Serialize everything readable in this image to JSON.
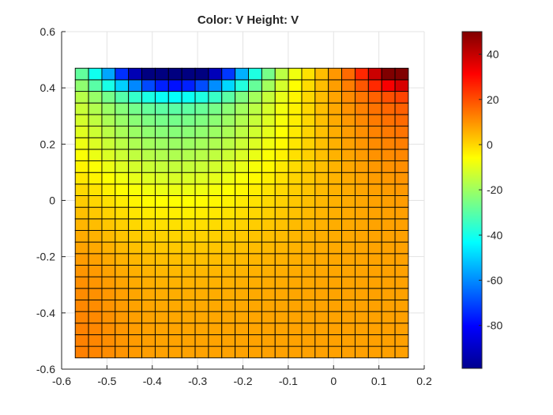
{
  "chart_data": {
    "type": "heatmap",
    "title": "Color: V  Height: V",
    "xlabel": "",
    "ylabel": "",
    "xlim": [
      -0.6,
      0.2
    ],
    "ylim": [
      -0.6,
      0.6
    ],
    "xticks": [
      -0.6,
      -0.5,
      -0.4,
      -0.3,
      -0.2,
      -0.1,
      0,
      0.1,
      0.2
    ],
    "xtick_labels": [
      "-0.6",
      "-0.5",
      "-0.4",
      "-0.3",
      "-0.2",
      "-0.1",
      "0",
      "0.1",
      "0.2"
    ],
    "yticks": [
      0.6,
      0.4,
      0.2,
      0,
      -0.2,
      -0.4,
      -0.6
    ],
    "ytick_labels": [
      "0.6",
      "0.4",
      "0.2",
      "0",
      "-0.2",
      "-0.4",
      "-0.6"
    ],
    "grid": true,
    "surface": {
      "x_range": [
        -0.57,
        0.165
      ],
      "y_range": [
        -0.56,
        0.47
      ],
      "columns": 25,
      "rows": 25,
      "colorscale": "jet",
      "value_range": [
        -99,
        50
      ]
    },
    "colorbar": {
      "ticks": [
        40,
        20,
        0,
        -20,
        -40,
        -60,
        -80
      ],
      "tick_labels": [
        "40",
        "20",
        "0",
        "-20",
        "-40",
        "-60",
        "-80"
      ],
      "range": [
        -99,
        50
      ]
    }
  }
}
